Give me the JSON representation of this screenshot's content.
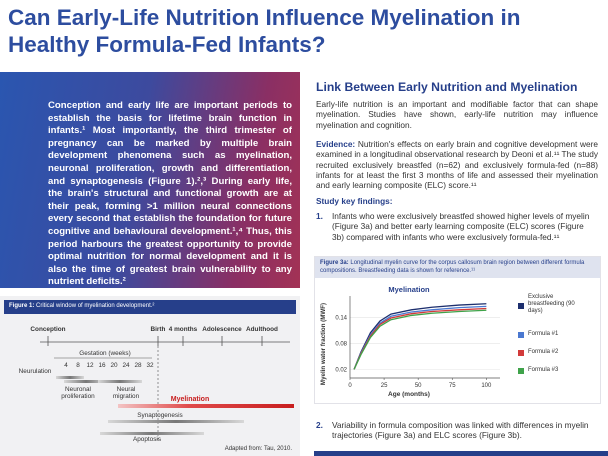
{
  "title": "Can Early-Life Nutrition Influence Myelination in Healthy Formula-Fed Infants?",
  "intro": "Conception and early life are important periods to establish the basis for lifetime brain function in infants.¹ Most importantly, the third trimester of pregnancy can be marked by multiple brain development phenomena such as myelination, neuronal proliferation, growth and differentiation, and synaptogenesis (Figure 1).²,³ During early life, the brain's structural and functional growth are at their peak, forming >1 million neural connections every second that establish the foundation for future cognitive and behavioural development.¹,⁴ Thus, this period harbours the greatest opportunity to provide optimal nutrition for normal development and it is also the time of greatest brain vulnerability to any nutrient deficits.²",
  "figure1": {
    "caption_label": "Figure 1:",
    "caption": "Critical window of myelination development.²",
    "milestones": [
      "Conception",
      "Birth",
      "4 months",
      "Adolescence",
      "Adulthood"
    ],
    "gestation_label": "Gestation (weeks)",
    "gestation_weeks": [
      4,
      8,
      12,
      16,
      20,
      24,
      28,
      32
    ],
    "phases": [
      "Neurulation",
      "Neuronal proliferation",
      "Neural migration",
      "Myelination",
      "Synaptogenesis",
      "Apoptosis"
    ],
    "source": "Adapted from: Tau, 2010."
  },
  "section": {
    "heading": "Link Between Early Nutrition and Myelination",
    "paragraph": "Early-life nutrition is an important and modifiable factor that can shape myelination. Studies have shown, early-life nutrition may influence myelination and cognition.",
    "evidence_label": "Evidence:",
    "evidence": "Nutrition's effects on early brain and cognitive development were examined in a longitudinal observational research by Deoni et al.¹¹ The study recruited exclusively breastfed (n=62) and exclusively formula-fed (n=88) infants for at least the first 3 months of life and assessed their myelination and early learning composite (ELC) score.¹¹",
    "findings_heading": "Study key findings:",
    "findings": [
      {
        "number": "1.",
        "text": "Infants who were exclusively breastfed showed higher levels of myelin (Figure 3a) and better early learning composite (ELC) scores (Figure 3b) compared with infants who were exclusively formula-fed.¹¹"
      },
      {
        "number": "2.",
        "text": "Variability in formula composition was linked with differences in myelin trajectories (Figure 3a) and ELC scores (Figure 3b)."
      }
    ]
  },
  "figure3": {
    "caption_label": "Figure 3a:",
    "caption": "Longitudinal myelin curve for the corpus callosum brain region between different formula compositions. Breastfeeding data is shown for reference.¹¹"
  },
  "chart_data": {
    "type": "line",
    "title": "Myelination",
    "x_label": "Age (months)",
    "y_label": "Myelin water fraction (MWF)",
    "x": [
      3,
      8,
      15,
      22,
      30,
      45,
      60,
      80,
      100
    ],
    "xlim": [
      0,
      110
    ],
    "xticks": [
      0,
      25,
      50,
      75,
      100
    ],
    "ylim": [
      0,
      0.19
    ],
    "yticks": [
      0.02,
      0.08,
      0.14
    ],
    "series": [
      {
        "name": "Exclusive breastfeeding (90 days)",
        "color": "#1d2f6e",
        "values": [
          0.02,
          0.06,
          0.105,
          0.132,
          0.148,
          0.158,
          0.164,
          0.169,
          0.172
        ]
      },
      {
        "name": "Formula #1",
        "color": "#4a78d0",
        "values": [
          0.02,
          0.058,
          0.1,
          0.127,
          0.143,
          0.153,
          0.158,
          0.163,
          0.166
        ]
      },
      {
        "name": "Formula #2",
        "color": "#d23a3a",
        "values": [
          0.02,
          0.056,
          0.097,
          0.124,
          0.139,
          0.149,
          0.154,
          0.158,
          0.161
        ]
      },
      {
        "name": "Formula #3",
        "color": "#3fa34a",
        "values": [
          0.02,
          0.054,
          0.094,
          0.12,
          0.135,
          0.145,
          0.15,
          0.154,
          0.157
        ]
      }
    ]
  }
}
